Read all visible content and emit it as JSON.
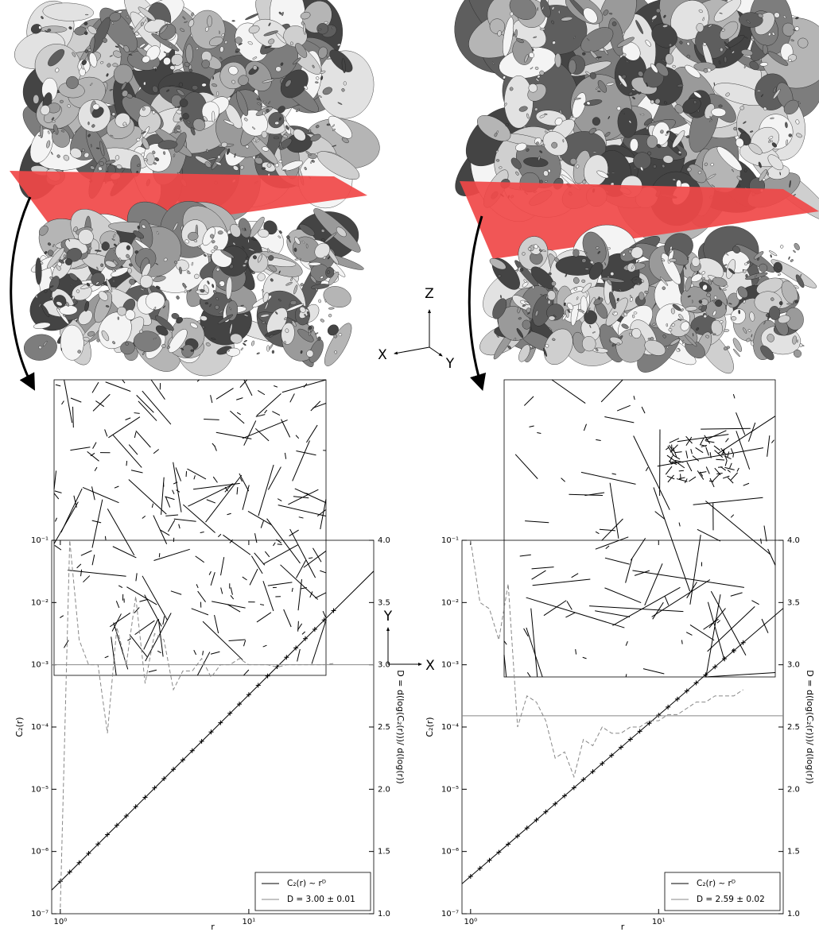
{
  "diagram": {
    "axes_3d": {
      "z": "Z",
      "x": "X",
      "y": "Y"
    },
    "axes_2d": {
      "y": "Y",
      "x": "X"
    }
  },
  "chart_data": [
    {
      "type": "line",
      "xlabel": "r",
      "ylabel": "C₂(r)",
      "y2label": "D = d(log(C₂(r)))/ d(log(r))",
      "xscale": "log",
      "yscale": "log",
      "xlim": [
        0.9,
        46
      ],
      "ylim": [
        1e-07,
        0.1
      ],
      "y2lim": [
        1.0,
        4.0
      ],
      "xticks": [
        {
          "value": 1,
          "label": "10⁰"
        },
        {
          "value": 10,
          "label": "10¹"
        }
      ],
      "yticks": [
        {
          "value": 1e-07,
          "label": "10⁻⁷"
        },
        {
          "value": 1e-06,
          "label": "10⁻⁶"
        },
        {
          "value": 1e-05,
          "label": "10⁻⁵"
        },
        {
          "value": 0.0001,
          "label": "10⁻⁴"
        },
        {
          "value": 0.001,
          "label": "10⁻³"
        },
        {
          "value": 0.01,
          "label": "10⁻²"
        },
        {
          "value": 0.1,
          "label": "10⁻¹"
        }
      ],
      "y2ticks": [
        {
          "value": 1.0,
          "label": "1.0"
        },
        1.5,
        {
          "value": 2.0,
          "label": "2.0"
        },
        2.5,
        {
          "value": 3.0,
          "label": "3.0"
        },
        3.5,
        {
          "value": 4.0,
          "label": "4.0"
        }
      ],
      "legend": "lower right",
      "x": [
        1,
        1.122,
        1.259,
        1.413,
        1.585,
        1.778,
        1.995,
        2.239,
        2.512,
        2.818,
        3.162,
        3.548,
        3.981,
        4.467,
        5.012,
        5.623,
        6.31,
        7.079,
        7.943,
        8.913,
        10,
        11.22,
        12.59,
        14.13,
        15.85,
        17.78,
        19.95,
        22.39,
        25.12,
        28.18
      ],
      "series": [
        {
          "marker": "+",
          "color": "#000000",
          "values": [
            3.31e-07,
            4.68e-07,
            6.61e-07,
            9.33e-07,
            1.32e-06,
            1.86e-06,
            2.63e-06,
            3.72e-06,
            5.25e-06,
            7.41e-06,
            1.05e-05,
            1.48e-05,
            2.09e-05,
            2.95e-05,
            4.17e-05,
            5.89e-05,
            8.32e-05,
            0.000117,
            0.000166,
            0.000234,
            0.000331,
            0.000468,
            0.000661,
            0.000933,
            0.00132,
            0.00186,
            0.00263,
            0.00372,
            0.00525,
            0.00741
          ]
        },
        {
          "name": "C₂(r)  ~ rᴰ",
          "color": "#000000",
          "x": [
            0.9,
            46
          ],
          "values": [
            2.4e-07,
            0.032
          ]
        },
        {
          "name": "D = 3.00 ±  0.01",
          "color": "#888888",
          "axis": "y2",
          "x": [
            0.9,
            46
          ],
          "values": [
            3.0,
            3.0
          ]
        },
        {
          "color": "#888888",
          "dash": "dashed",
          "axis": "y2",
          "values": [
            1.05,
            4.0,
            3.2,
            3.0,
            3.0,
            2.45,
            3.3,
            3.0,
            3.55,
            2.85,
            3.25,
            3.2,
            2.8,
            2.95,
            2.95,
            3.05,
            2.9,
            3.0,
            3.0,
            3.05,
            3.0,
            3.0,
            3.0,
            2.98,
            3.0,
            3.0,
            3.0,
            3.0,
            3.0,
            3.01
          ]
        }
      ]
    },
    {
      "type": "line",
      "xlabel": "r",
      "ylabel": "C₂(r)",
      "y2label": "D = d(log(C₂(r)))/ d(log(r))",
      "xscale": "log",
      "yscale": "log",
      "xlim": [
        0.9,
        46
      ],
      "ylim": [
        1e-07,
        0.1
      ],
      "y2lim": [
        1.0,
        4.0
      ],
      "xticks": [
        {
          "value": 1,
          "label": "10⁰"
        },
        {
          "value": 10,
          "label": "10¹"
        }
      ],
      "yticks": [
        {
          "value": 1e-07,
          "label": "10⁻⁷"
        },
        {
          "value": 1e-06,
          "label": "10⁻⁶"
        },
        {
          "value": 1e-05,
          "label": "10⁻⁵"
        },
        {
          "value": 0.0001,
          "label": "10⁻⁴"
        },
        {
          "value": 0.001,
          "label": "10⁻³"
        },
        {
          "value": 0.01,
          "label": "10⁻²"
        },
        {
          "value": 0.1,
          "label": "10⁻¹"
        }
      ],
      "y2ticks": [
        {
          "value": 1.0,
          "label": "1.0"
        },
        1.5,
        {
          "value": 2.0,
          "label": "2.0"
        },
        2.5,
        {
          "value": 3.0,
          "label": "3.0"
        },
        3.5,
        {
          "value": 4.0,
          "label": "4.0"
        }
      ],
      "legend": "lower right",
      "x": [
        1,
        1.122,
        1.259,
        1.413,
        1.585,
        1.778,
        1.995,
        2.239,
        2.512,
        2.818,
        3.162,
        3.548,
        3.981,
        4.467,
        5.012,
        5.623,
        6.31,
        7.079,
        7.943,
        8.913,
        10,
        11.22,
        12.59,
        14.13,
        15.85,
        17.78,
        19.95,
        22.39,
        25.12,
        28.18
      ],
      "series": [
        {
          "marker": "+",
          "color": "#000000",
          "values": [
            3.98e-07,
            5.36e-07,
            7.23e-07,
            9.74e-07,
            1.31e-06,
            1.77e-06,
            2.38e-06,
            3.21e-06,
            4.33e-06,
            5.83e-06,
            7.85e-06,
            1.06e-05,
            1.43e-05,
            1.92e-05,
            2.59e-05,
            3.49e-05,
            4.7e-05,
            6.33e-05,
            8.53e-05,
            0.000115,
            0.000155,
            0.000209,
            0.000281,
            0.000379,
            0.000511,
            0.000688,
            0.000927,
            0.00125,
            0.00168,
            0.00227
          ]
        },
        {
          "name": "C₂(r)  ~ rᴰ",
          "color": "#000000",
          "x": [
            0.9,
            46
          ],
          "values": [
            3.03e-07,
            0.00807
          ]
        },
        {
          "name": "D = 2.59 ±  0.02",
          "color": "#888888",
          "axis": "y2",
          "x": [
            0.9,
            46
          ],
          "values": [
            2.59,
            2.59
          ]
        },
        {
          "color": "#888888",
          "dash": "dashed",
          "axis": "y2",
          "values": [
            4.0,
            3.5,
            3.45,
            3.2,
            3.65,
            2.5,
            2.75,
            2.7,
            2.55,
            2.25,
            2.3,
            2.1,
            2.4,
            2.35,
            2.5,
            2.45,
            2.45,
            2.5,
            2.5,
            2.55,
            2.55,
            2.6,
            2.6,
            2.65,
            2.7,
            2.7,
            2.75,
            2.75,
            2.75,
            2.8
          ]
        }
      ]
    }
  ]
}
